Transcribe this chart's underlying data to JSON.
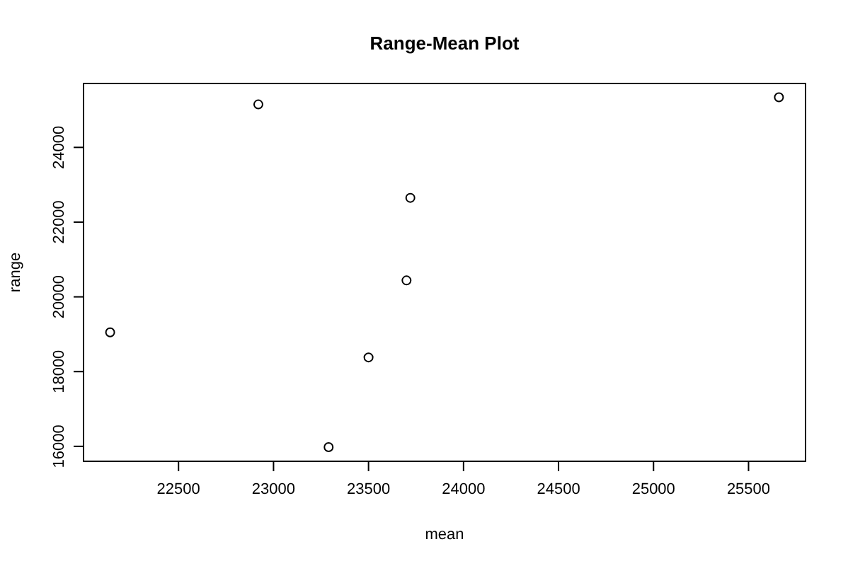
{
  "chart_data": {
    "type": "scatter",
    "title": "Range-Mean Plot",
    "xlabel": "mean",
    "ylabel": "range",
    "x": [
      22140,
      22920,
      23720,
      23700,
      23500,
      23290,
      25660
    ],
    "values": [
      19050,
      25150,
      22650,
      20440,
      18380,
      15980,
      25340
    ],
    "color": "#000000",
    "marker": "circle",
    "xlim": [
      22000,
      25800
    ],
    "ylim": [
      15600,
      25710
    ],
    "xticks": [
      22500,
      23000,
      23500,
      24000,
      24500,
      25000,
      25500
    ],
    "yticks": [
      16000,
      18000,
      20000,
      22000,
      24000
    ]
  }
}
